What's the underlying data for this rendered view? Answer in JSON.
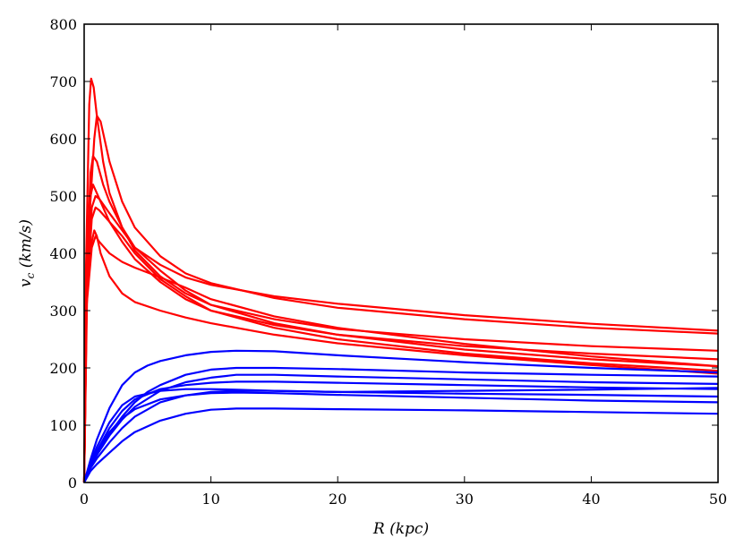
{
  "chart_data": {
    "type": "line",
    "title": "",
    "xlabel": "R (kpc)",
    "ylabel_main": "v",
    "ylabel_sub": "c",
    "ylabel_rest": " (km/s)",
    "xlim": [
      0,
      50
    ],
    "ylim": [
      0,
      800
    ],
    "xticks": [
      0,
      10,
      20,
      30,
      40,
      50
    ],
    "yticks": [
      0,
      100,
      200,
      300,
      400,
      500,
      600,
      700,
      800
    ],
    "grid": false,
    "legend": "none",
    "colors": {
      "red": "#ff0000",
      "blue": "#0000ff"
    },
    "series": [
      {
        "color": "red",
        "points": [
          [
            0,
            0
          ],
          [
            0.15,
            380
          ],
          [
            0.4,
            660
          ],
          [
            0.55,
            705
          ],
          [
            0.75,
            690
          ],
          [
            1,
            640
          ],
          [
            1.5,
            560
          ],
          [
            2,
            505
          ],
          [
            3,
            445
          ],
          [
            4,
            410
          ],
          [
            6,
            380
          ],
          [
            8,
            358
          ],
          [
            10,
            345
          ],
          [
            15,
            325
          ],
          [
            20,
            312
          ],
          [
            30,
            292
          ],
          [
            40,
            277
          ],
          [
            50,
            265
          ]
        ]
      },
      {
        "color": "red",
        "points": [
          [
            0,
            0
          ],
          [
            0.3,
            420
          ],
          [
            0.8,
            600
          ],
          [
            1,
            640
          ],
          [
            1.3,
            630
          ],
          [
            2,
            560
          ],
          [
            3,
            490
          ],
          [
            4,
            445
          ],
          [
            6,
            395
          ],
          [
            8,
            365
          ],
          [
            10,
            348
          ],
          [
            15,
            322
          ],
          [
            20,
            305
          ],
          [
            30,
            285
          ],
          [
            40,
            270
          ],
          [
            50,
            260
          ]
        ]
      },
      {
        "color": "red",
        "points": [
          [
            0,
            0
          ],
          [
            0.2,
            380
          ],
          [
            0.5,
            540
          ],
          [
            0.7,
            570
          ],
          [
            1,
            560
          ],
          [
            1.5,
            520
          ],
          [
            2,
            490
          ],
          [
            3,
            445
          ],
          [
            4,
            405
          ],
          [
            6,
            360
          ],
          [
            8,
            330
          ],
          [
            10,
            310
          ],
          [
            15,
            285
          ],
          [
            20,
            268
          ],
          [
            30,
            250
          ],
          [
            40,
            238
          ],
          [
            50,
            230
          ]
        ]
      },
      {
        "color": "red",
        "points": [
          [
            0,
            0
          ],
          [
            0.2,
            370
          ],
          [
            0.5,
            500
          ],
          [
            0.7,
            520
          ],
          [
            1,
            505
          ],
          [
            1.5,
            480
          ],
          [
            2,
            455
          ],
          [
            3,
            420
          ],
          [
            4,
            390
          ],
          [
            6,
            350
          ],
          [
            8,
            320
          ],
          [
            10,
            300
          ],
          [
            15,
            275
          ],
          [
            20,
            258
          ],
          [
            30,
            238
          ],
          [
            40,
            225
          ],
          [
            50,
            215
          ]
        ]
      },
      {
        "color": "red",
        "points": [
          [
            0,
            0
          ],
          [
            0.2,
            330
          ],
          [
            0.6,
            480
          ],
          [
            0.9,
            500
          ],
          [
            1.2,
            495
          ],
          [
            2,
            470
          ],
          [
            3,
            440
          ],
          [
            4,
            410
          ],
          [
            6,
            370
          ],
          [
            8,
            335
          ],
          [
            10,
            310
          ],
          [
            15,
            278
          ],
          [
            20,
            258
          ],
          [
            30,
            232
          ],
          [
            40,
            215
          ],
          [
            50,
            203
          ]
        ]
      },
      {
        "color": "red",
        "points": [
          [
            0,
            0
          ],
          [
            0.2,
            320
          ],
          [
            0.6,
            460
          ],
          [
            0.9,
            480
          ],
          [
            1.2,
            475
          ],
          [
            2,
            455
          ],
          [
            3,
            430
          ],
          [
            4,
            400
          ],
          [
            6,
            355
          ],
          [
            8,
            325
          ],
          [
            10,
            300
          ],
          [
            15,
            270
          ],
          [
            20,
            250
          ],
          [
            30,
            225
          ],
          [
            40,
            208
          ],
          [
            50,
            195
          ]
        ]
      },
      {
        "color": "red",
        "points": [
          [
            0,
            0
          ],
          [
            0.2,
            330
          ],
          [
            0.6,
            420
          ],
          [
            0.8,
            440
          ],
          [
            1,
            430
          ],
          [
            1.3,
            400
          ],
          [
            2,
            360
          ],
          [
            3,
            330
          ],
          [
            4,
            315
          ],
          [
            6,
            300
          ],
          [
            8,
            288
          ],
          [
            10,
            278
          ],
          [
            15,
            258
          ],
          [
            20,
            243
          ],
          [
            30,
            222
          ],
          [
            40,
            205
          ],
          [
            50,
            190
          ]
        ]
      },
      {
        "color": "red",
        "points": [
          [
            0,
            0
          ],
          [
            0.2,
            310
          ],
          [
            0.6,
            410
          ],
          [
            0.9,
            430
          ],
          [
            1.2,
            420
          ],
          [
            2,
            400
          ],
          [
            3,
            385
          ],
          [
            4,
            375
          ],
          [
            6,
            358
          ],
          [
            8,
            340
          ],
          [
            10,
            320
          ],
          [
            15,
            290
          ],
          [
            20,
            270
          ],
          [
            30,
            242
          ],
          [
            40,
            220
          ],
          [
            50,
            203
          ]
        ]
      },
      {
        "color": "blue",
        "points": [
          [
            0,
            0
          ],
          [
            0.5,
            40
          ],
          [
            1,
            75
          ],
          [
            2,
            130
          ],
          [
            3,
            170
          ],
          [
            4,
            192
          ],
          [
            5,
            204
          ],
          [
            6,
            212
          ],
          [
            8,
            222
          ],
          [
            10,
            228
          ],
          [
            12,
            230
          ],
          [
            15,
            229
          ],
          [
            20,
            222
          ],
          [
            30,
            210
          ],
          [
            40,
            200
          ],
          [
            50,
            192
          ]
        ]
      },
      {
        "color": "blue",
        "points": [
          [
            0,
            0
          ],
          [
            0.5,
            30
          ],
          [
            1,
            50
          ],
          [
            2,
            85
          ],
          [
            3,
            115
          ],
          [
            4,
            140
          ],
          [
            5,
            158
          ],
          [
            6,
            170
          ],
          [
            8,
            188
          ],
          [
            10,
            197
          ],
          [
            12,
            200
          ],
          [
            15,
            200
          ],
          [
            20,
            198
          ],
          [
            30,
            192
          ],
          [
            40,
            188
          ],
          [
            50,
            185
          ]
        ]
      },
      {
        "color": "blue",
        "points": [
          [
            0,
            0
          ],
          [
            0.5,
            28
          ],
          [
            1,
            48
          ],
          [
            2,
            82
          ],
          [
            3,
            110
          ],
          [
            4,
            132
          ],
          [
            6,
            160
          ],
          [
            8,
            175
          ],
          [
            10,
            183
          ],
          [
            12,
            188
          ],
          [
            15,
            188
          ],
          [
            20,
            185
          ],
          [
            30,
            180
          ],
          [
            40,
            175
          ],
          [
            50,
            172
          ]
        ]
      },
      {
        "color": "blue",
        "points": [
          [
            0,
            0
          ],
          [
            0.5,
            32
          ],
          [
            1,
            55
          ],
          [
            2,
            95
          ],
          [
            3,
            125
          ],
          [
            4,
            145
          ],
          [
            6,
            163
          ],
          [
            8,
            170
          ],
          [
            10,
            174
          ],
          [
            12,
            176
          ],
          [
            15,
            176
          ],
          [
            20,
            174
          ],
          [
            30,
            170
          ],
          [
            40,
            166
          ],
          [
            50,
            163
          ]
        ]
      },
      {
        "color": "blue",
        "points": [
          [
            0,
            0
          ],
          [
            0.5,
            35
          ],
          [
            1,
            62
          ],
          [
            2,
            105
          ],
          [
            3,
            135
          ],
          [
            4,
            150
          ],
          [
            6,
            160
          ],
          [
            8,
            163
          ],
          [
            10,
            163
          ],
          [
            12,
            162
          ],
          [
            15,
            160
          ],
          [
            20,
            158
          ],
          [
            30,
            155
          ],
          [
            40,
            153
          ],
          [
            50,
            150
          ]
        ]
      },
      {
        "color": "blue",
        "points": [
          [
            0,
            0
          ],
          [
            0.5,
            25
          ],
          [
            1,
            42
          ],
          [
            2,
            70
          ],
          [
            3,
            95
          ],
          [
            4,
            115
          ],
          [
            6,
            140
          ],
          [
            8,
            152
          ],
          [
            10,
            158
          ],
          [
            12,
            160
          ],
          [
            15,
            160
          ],
          [
            20,
            158
          ],
          [
            30,
            160
          ],
          [
            40,
            162
          ],
          [
            50,
            165
          ]
        ]
      },
      {
        "color": "blue",
        "points": [
          [
            0,
            0
          ],
          [
            0.5,
            30
          ],
          [
            1,
            52
          ],
          [
            2,
            88
          ],
          [
            3,
            112
          ],
          [
            4,
            128
          ],
          [
            6,
            145
          ],
          [
            8,
            152
          ],
          [
            10,
            156
          ],
          [
            12,
            157
          ],
          [
            15,
            156
          ],
          [
            20,
            153
          ],
          [
            30,
            148
          ],
          [
            40,
            143
          ],
          [
            50,
            140
          ]
        ]
      },
      {
        "color": "blue",
        "points": [
          [
            0,
            0
          ],
          [
            0.5,
            20
          ],
          [
            1,
            32
          ],
          [
            2,
            52
          ],
          [
            3,
            72
          ],
          [
            4,
            88
          ],
          [
            6,
            108
          ],
          [
            8,
            120
          ],
          [
            10,
            127
          ],
          [
            12,
            129
          ],
          [
            15,
            129
          ],
          [
            20,
            128
          ],
          [
            30,
            126
          ],
          [
            40,
            123
          ],
          [
            50,
            120
          ]
        ]
      }
    ]
  }
}
